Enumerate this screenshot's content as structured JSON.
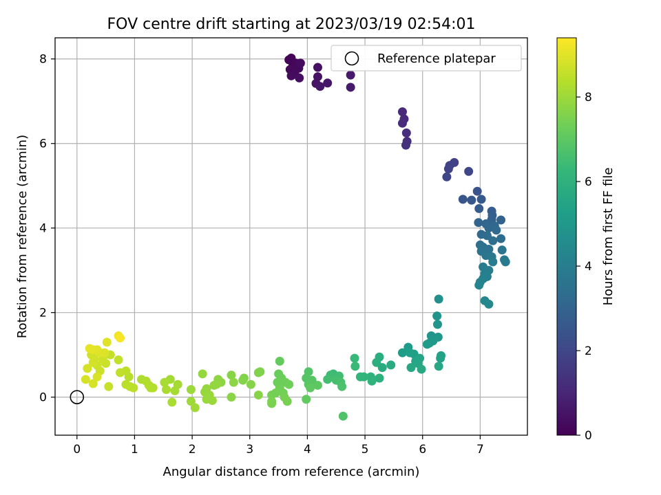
{
  "chart_data": {
    "type": "scatter",
    "title": "FOV centre drift starting at 2023/03/19 02:54:01",
    "xlabel": "Angular distance from reference (arcmin)",
    "ylabel": "Rotation from reference (arcmin)",
    "xlim": [
      -0.38,
      7.82
    ],
    "ylim": [
      -0.9,
      8.5
    ],
    "xticks": [
      0,
      1,
      2,
      3,
      4,
      5,
      6,
      7
    ],
    "yticks": [
      0,
      2,
      4,
      6,
      8
    ],
    "grid": true,
    "legend": {
      "placement": "top-right",
      "entries": [
        {
          "label": "Reference platepar",
          "marker": "open-circle"
        }
      ]
    },
    "reference_point": {
      "x": 0,
      "y": 0
    },
    "colorbar": {
      "label": "Hours from first FF file",
      "range": [
        0,
        9.4
      ],
      "ticks": [
        0,
        2,
        4,
        6,
        8
      ],
      "colormap": [
        "#440154",
        "#482878",
        "#3e4a89",
        "#31688e",
        "#26828e",
        "#1f9e89",
        "#35b779",
        "#6ece58",
        "#b5de2b",
        "#fde725"
      ]
    },
    "points": [
      {
        "x": 3.72,
        "y": 8.02,
        "h": 0.05
      },
      {
        "x": 3.68,
        "y": 7.98,
        "h": 0.08
      },
      {
        "x": 3.75,
        "y": 7.85,
        "h": 0.1
      },
      {
        "x": 3.8,
        "y": 7.9,
        "h": 0.15
      },
      {
        "x": 3.7,
        "y": 7.75,
        "h": 0.2
      },
      {
        "x": 3.85,
        "y": 7.78,
        "h": 0.22
      },
      {
        "x": 3.78,
        "y": 7.65,
        "h": 0.25
      },
      {
        "x": 3.88,
        "y": 7.9,
        "h": 0.28
      },
      {
        "x": 3.72,
        "y": 7.6,
        "h": 0.3
      },
      {
        "x": 3.86,
        "y": 7.55,
        "h": 0.35
      },
      {
        "x": 4.18,
        "y": 7.8,
        "h": 0.4
      },
      {
        "x": 4.18,
        "y": 7.58,
        "h": 0.45
      },
      {
        "x": 4.15,
        "y": 7.42,
        "h": 0.5
      },
      {
        "x": 4.22,
        "y": 7.35,
        "h": 0.55
      },
      {
        "x": 4.35,
        "y": 7.43,
        "h": 0.6
      },
      {
        "x": 4.75,
        "y": 7.62,
        "h": 0.65
      },
      {
        "x": 4.75,
        "y": 7.33,
        "h": 0.7
      },
      {
        "x": 5.65,
        "y": 6.75,
        "h": 1.1
      },
      {
        "x": 5.68,
        "y": 6.58,
        "h": 1.15
      },
      {
        "x": 5.65,
        "y": 6.48,
        "h": 1.2
      },
      {
        "x": 5.72,
        "y": 6.25,
        "h": 1.25
      },
      {
        "x": 5.73,
        "y": 6.05,
        "h": 1.3
      },
      {
        "x": 5.71,
        "y": 5.96,
        "h": 1.35
      },
      {
        "x": 6.55,
        "y": 5.55,
        "h": 1.8
      },
      {
        "x": 6.47,
        "y": 5.48,
        "h": 1.85
      },
      {
        "x": 6.45,
        "y": 5.4,
        "h": 1.9
      },
      {
        "x": 6.42,
        "y": 5.21,
        "h": 1.95
      },
      {
        "x": 6.8,
        "y": 5.34,
        "h": 2.0
      },
      {
        "x": 6.95,
        "y": 4.87,
        "h": 2.4
      },
      {
        "x": 6.7,
        "y": 4.68,
        "h": 2.5
      },
      {
        "x": 6.85,
        "y": 4.66,
        "h": 2.55
      },
      {
        "x": 7.02,
        "y": 4.68,
        "h": 2.6
      },
      {
        "x": 6.98,
        "y": 4.46,
        "h": 2.7
      },
      {
        "x": 7.2,
        "y": 4.4,
        "h": 2.8
      },
      {
        "x": 7.21,
        "y": 4.3,
        "h": 2.85
      },
      {
        "x": 7.2,
        "y": 4.2,
        "h": 2.9
      },
      {
        "x": 7.36,
        "y": 4.19,
        "h": 2.95
      },
      {
        "x": 6.97,
        "y": 4.13,
        "h": 3.0
      },
      {
        "x": 7.1,
        "y": 4.1,
        "h": 3.05
      },
      {
        "x": 7.25,
        "y": 4.05,
        "h": 3.1
      },
      {
        "x": 7.15,
        "y": 4.0,
        "h": 3.15
      },
      {
        "x": 7.28,
        "y": 3.95,
        "h": 3.2
      },
      {
        "x": 7.02,
        "y": 3.85,
        "h": 3.25
      },
      {
        "x": 7.12,
        "y": 3.82,
        "h": 3.3
      },
      {
        "x": 7.36,
        "y": 3.75,
        "h": 3.35
      },
      {
        "x": 7.22,
        "y": 3.7,
        "h": 3.4
      },
      {
        "x": 7.0,
        "y": 3.6,
        "h": 3.45
      },
      {
        "x": 7.05,
        "y": 3.55,
        "h": 3.5
      },
      {
        "x": 7.15,
        "y": 3.5,
        "h": 3.55
      },
      {
        "x": 7.02,
        "y": 3.45,
        "h": 3.6
      },
      {
        "x": 7.38,
        "y": 3.48,
        "h": 3.65
      },
      {
        "x": 7.1,
        "y": 3.35,
        "h": 3.7
      },
      {
        "x": 7.2,
        "y": 3.32,
        "h": 3.75
      },
      {
        "x": 7.42,
        "y": 3.25,
        "h": 3.8
      },
      {
        "x": 7.44,
        "y": 3.2,
        "h": 3.85
      },
      {
        "x": 7.22,
        "y": 3.2,
        "h": 3.9
      },
      {
        "x": 7.05,
        "y": 3.08,
        "h": 3.95
      },
      {
        "x": 7.15,
        "y": 3.0,
        "h": 4.0
      },
      {
        "x": 7.08,
        "y": 2.92,
        "h": 4.05
      },
      {
        "x": 7.12,
        "y": 2.85,
        "h": 4.1
      },
      {
        "x": 7.05,
        "y": 2.8,
        "h": 4.15
      },
      {
        "x": 7.0,
        "y": 2.72,
        "h": 4.2
      },
      {
        "x": 6.98,
        "y": 2.65,
        "h": 4.25
      },
      {
        "x": 7.08,
        "y": 2.28,
        "h": 4.35
      },
      {
        "x": 7.15,
        "y": 2.2,
        "h": 4.4
      },
      {
        "x": 6.28,
        "y": 2.32,
        "h": 4.7
      },
      {
        "x": 6.25,
        "y": 1.92,
        "h": 4.8
      },
      {
        "x": 6.26,
        "y": 1.72,
        "h": 4.85
      },
      {
        "x": 6.15,
        "y": 1.45,
        "h": 4.9
      },
      {
        "x": 6.27,
        "y": 1.42,
        "h": 4.95
      },
      {
        "x": 6.18,
        "y": 1.33,
        "h": 5.0
      },
      {
        "x": 6.12,
        "y": 1.28,
        "h": 5.05
      },
      {
        "x": 6.08,
        "y": 1.25,
        "h": 5.1
      },
      {
        "x": 5.75,
        "y": 1.18,
        "h": 5.15
      },
      {
        "x": 5.65,
        "y": 1.05,
        "h": 5.2
      },
      {
        "x": 5.78,
        "y": 1.05,
        "h": 5.25
      },
      {
        "x": 5.85,
        "y": 1.02,
        "h": 5.3
      },
      {
        "x": 6.32,
        "y": 0.98,
        "h": 5.35
      },
      {
        "x": 6.31,
        "y": 0.92,
        "h": 5.4
      },
      {
        "x": 5.95,
        "y": 0.92,
        "h": 5.45
      },
      {
        "x": 5.88,
        "y": 0.85,
        "h": 5.5
      },
      {
        "x": 5.92,
        "y": 0.8,
        "h": 5.55
      },
      {
        "x": 6.28,
        "y": 0.73,
        "h": 5.6
      },
      {
        "x": 5.8,
        "y": 0.7,
        "h": 5.65
      },
      {
        "x": 5.98,
        "y": 0.66,
        "h": 5.7
      },
      {
        "x": 5.45,
        "y": 0.76,
        "h": 5.75
      },
      {
        "x": 5.3,
        "y": 0.7,
        "h": 5.8
      },
      {
        "x": 5.25,
        "y": 0.95,
        "h": 5.85
      },
      {
        "x": 5.2,
        "y": 0.82,
        "h": 5.9
      },
      {
        "x": 5.25,
        "y": 0.45,
        "h": 5.95
      },
      {
        "x": 5.1,
        "y": 0.48,
        "h": 6.0
      },
      {
        "x": 5.12,
        "y": 0.38,
        "h": 6.05
      },
      {
        "x": 4.98,
        "y": 0.48,
        "h": 6.1
      },
      {
        "x": 4.92,
        "y": 0.48,
        "h": 6.15
      },
      {
        "x": 4.82,
        "y": 0.92,
        "h": 6.3
      },
      {
        "x": 4.83,
        "y": 0.73,
        "h": 6.35
      },
      {
        "x": 4.45,
        "y": 0.55,
        "h": 6.4
      },
      {
        "x": 4.4,
        "y": 0.52,
        "h": 6.45
      },
      {
        "x": 4.55,
        "y": 0.5,
        "h": 6.5
      },
      {
        "x": 4.35,
        "y": 0.42,
        "h": 6.55
      },
      {
        "x": 4.5,
        "y": 0.4,
        "h": 6.6
      },
      {
        "x": 4.58,
        "y": 0.35,
        "h": 6.65
      },
      {
        "x": 4.6,
        "y": 0.25,
        "h": 6.7
      },
      {
        "x": 4.62,
        "y": -0.45,
        "h": 6.75
      },
      {
        "x": 4.02,
        "y": 0.6,
        "h": 6.8
      },
      {
        "x": 3.98,
        "y": 0.45,
        "h": 6.85
      },
      {
        "x": 4.08,
        "y": 0.4,
        "h": 6.9
      },
      {
        "x": 4.02,
        "y": 0.3,
        "h": 6.95
      },
      {
        "x": 4.18,
        "y": 0.28,
        "h": 7.0
      },
      {
        "x": 4.05,
        "y": 0.22,
        "h": 7.05
      },
      {
        "x": 3.98,
        "y": -0.05,
        "h": 7.1
      },
      {
        "x": 3.52,
        "y": 0.85,
        "h": 7.15
      },
      {
        "x": 3.5,
        "y": 0.55,
        "h": 7.2
      },
      {
        "x": 3.55,
        "y": 0.45,
        "h": 7.22
      },
      {
        "x": 3.48,
        "y": 0.35,
        "h": 7.25
      },
      {
        "x": 3.62,
        "y": 0.35,
        "h": 7.28
      },
      {
        "x": 3.68,
        "y": 0.3,
        "h": 7.3
      },
      {
        "x": 3.52,
        "y": 0.22,
        "h": 7.33
      },
      {
        "x": 3.58,
        "y": 0.1,
        "h": 7.35
      },
      {
        "x": 3.45,
        "y": 0.1,
        "h": 7.38
      },
      {
        "x": 3.38,
        "y": 0.05,
        "h": 7.4
      },
      {
        "x": 3.6,
        "y": 0.0,
        "h": 7.42
      },
      {
        "x": 3.65,
        "y": -0.1,
        "h": 7.45
      },
      {
        "x": 3.38,
        "y": -0.1,
        "h": 7.48
      },
      {
        "x": 3.38,
        "y": -0.15,
        "h": 7.5
      },
      {
        "x": 3.18,
        "y": 0.6,
        "h": 7.55
      },
      {
        "x": 3.15,
        "y": 0.58,
        "h": 7.58
      },
      {
        "x": 2.9,
        "y": 0.45,
        "h": 7.6
      },
      {
        "x": 2.88,
        "y": 0.4,
        "h": 7.62
      },
      {
        "x": 3.02,
        "y": 0.3,
        "h": 7.65
      },
      {
        "x": 3.15,
        "y": 0.05,
        "h": 7.68
      },
      {
        "x": 2.68,
        "y": 0.52,
        "h": 7.7
      },
      {
        "x": 2.68,
        "y": 0.0,
        "h": 7.72
      },
      {
        "x": 2.72,
        "y": 0.35,
        "h": 7.75
      },
      {
        "x": 2.45,
        "y": 0.42,
        "h": 7.78
      },
      {
        "x": 2.5,
        "y": 0.35,
        "h": 7.8
      },
      {
        "x": 2.42,
        "y": 0.3,
        "h": 7.82
      },
      {
        "x": 2.38,
        "y": 0.28,
        "h": 7.85
      },
      {
        "x": 2.18,
        "y": 0.55,
        "h": 7.88
      },
      {
        "x": 2.25,
        "y": 0.2,
        "h": 7.9
      },
      {
        "x": 2.22,
        "y": 0.12,
        "h": 7.92
      },
      {
        "x": 2.3,
        "y": 0.05,
        "h": 7.94
      },
      {
        "x": 2.25,
        "y": -0.05,
        "h": 7.96
      },
      {
        "x": 2.35,
        "y": -0.08,
        "h": 7.98
      },
      {
        "x": 1.98,
        "y": 0.18,
        "h": 8.0
      },
      {
        "x": 1.98,
        "y": -0.1,
        "h": 8.02
      },
      {
        "x": 2.05,
        "y": -0.25,
        "h": 8.04
      },
      {
        "x": 1.62,
        "y": 0.42,
        "h": 8.1
      },
      {
        "x": 1.75,
        "y": 0.3,
        "h": 8.12
      },
      {
        "x": 1.7,
        "y": 0.15,
        "h": 8.14
      },
      {
        "x": 1.52,
        "y": 0.35,
        "h": 8.16
      },
      {
        "x": 1.55,
        "y": 0.18,
        "h": 8.18
      },
      {
        "x": 1.65,
        "y": -0.12,
        "h": 8.2
      },
      {
        "x": 1.12,
        "y": 0.42,
        "h": 8.25
      },
      {
        "x": 1.2,
        "y": 0.38,
        "h": 8.28
      },
      {
        "x": 1.25,
        "y": 0.28,
        "h": 8.3
      },
      {
        "x": 1.28,
        "y": 0.22,
        "h": 8.32
      },
      {
        "x": 1.32,
        "y": 0.22,
        "h": 8.34
      },
      {
        "x": 0.9,
        "y": 0.48,
        "h": 8.4
      },
      {
        "x": 0.85,
        "y": 0.3,
        "h": 8.42
      },
      {
        "x": 0.92,
        "y": 0.25,
        "h": 8.44
      },
      {
        "x": 0.98,
        "y": 0.22,
        "h": 8.46
      },
      {
        "x": 0.85,
        "y": 0.62,
        "h": 8.48
      },
      {
        "x": 0.75,
        "y": 0.58,
        "h": 8.5
      },
      {
        "x": 0.72,
        "y": 0.88,
        "h": 8.55
      },
      {
        "x": 0.58,
        "y": 1.0,
        "h": 8.6
      },
      {
        "x": 0.55,
        "y": 0.25,
        "h": 8.62
      },
      {
        "x": 0.5,
        "y": 0.8,
        "h": 8.65
      },
      {
        "x": 0.4,
        "y": 0.62,
        "h": 8.68
      },
      {
        "x": 0.35,
        "y": 0.75,
        "h": 8.7
      },
      {
        "x": 0.45,
        "y": 0.9,
        "h": 8.72
      },
      {
        "x": 0.3,
        "y": 0.9,
        "h": 8.74
      },
      {
        "x": 0.25,
        "y": 1.0,
        "h": 8.76
      },
      {
        "x": 0.28,
        "y": 0.82,
        "h": 8.78
      },
      {
        "x": 0.18,
        "y": 0.68,
        "h": 8.8
      },
      {
        "x": 0.15,
        "y": 0.42,
        "h": 8.82
      },
      {
        "x": 0.28,
        "y": 0.32,
        "h": 8.84
      },
      {
        "x": 0.35,
        "y": 0.48,
        "h": 8.86
      },
      {
        "x": 0.4,
        "y": 1.05,
        "h": 8.9
      },
      {
        "x": 0.48,
        "y": 1.05,
        "h": 8.92
      },
      {
        "x": 0.52,
        "y": 1.3,
        "h": 8.95
      },
      {
        "x": 0.35,
        "y": 1.12,
        "h": 8.98
      },
      {
        "x": 0.28,
        "y": 1.12,
        "h": 9.0
      },
      {
        "x": 0.22,
        "y": 1.15,
        "h": 9.05
      },
      {
        "x": 0.72,
        "y": 1.45,
        "h": 9.2
      },
      {
        "x": 0.75,
        "y": 1.4,
        "h": 9.3
      }
    ]
  }
}
